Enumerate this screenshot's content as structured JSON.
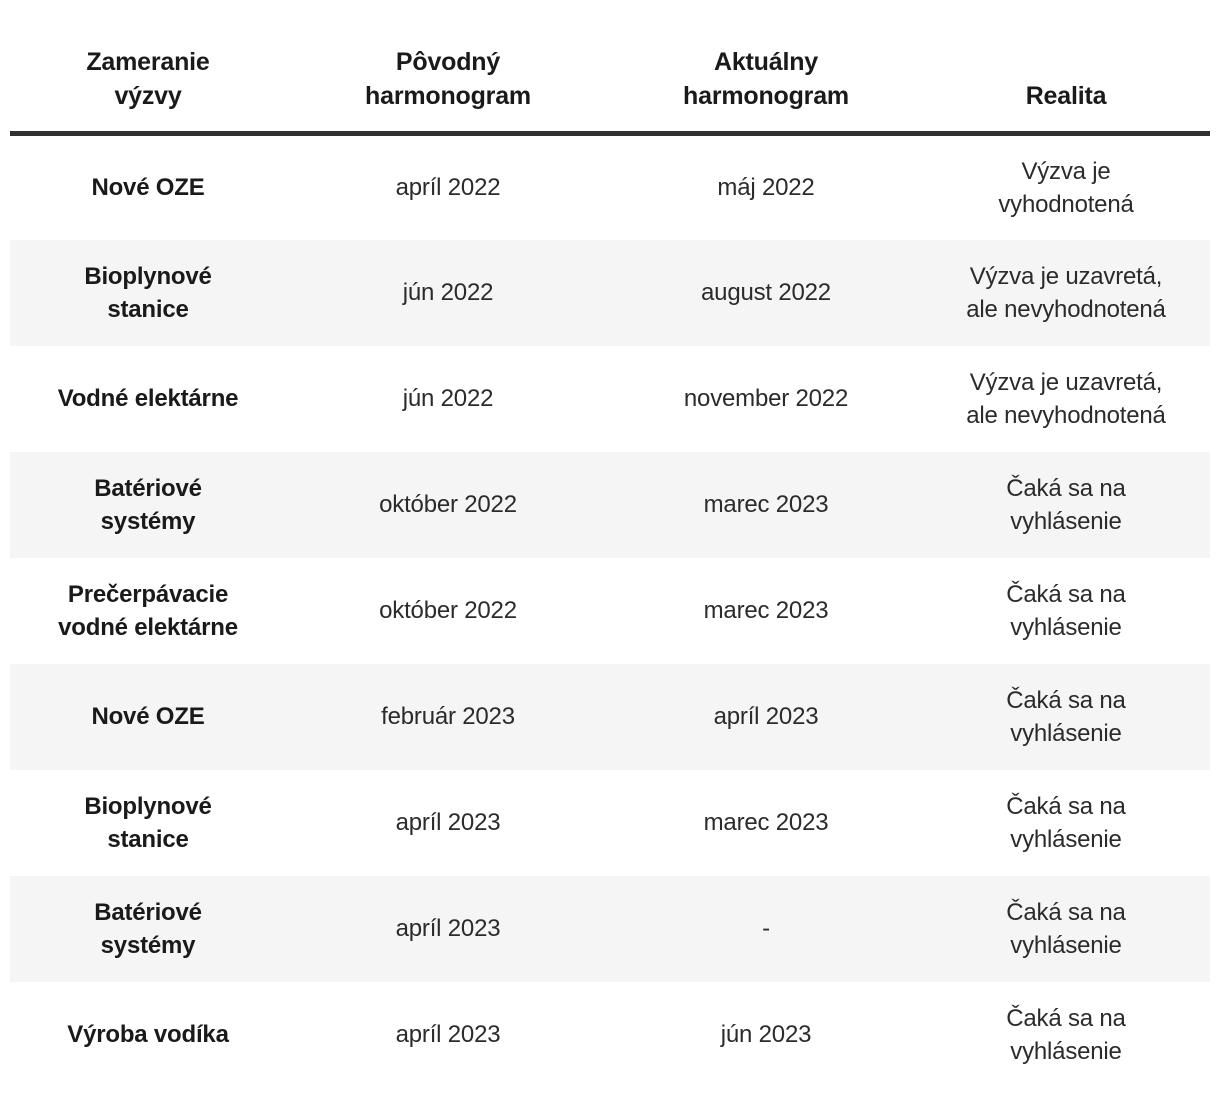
{
  "table": {
    "columns": [
      {
        "key": "zameranie-vyzvy",
        "label": "Zameranie\nvýzvy"
      },
      {
        "key": "povodny-harmonogram",
        "label": "Pôvodný\nharmonogram"
      },
      {
        "key": "aktualny-harmonogram",
        "label": "Aktuálny\nharmonogram"
      },
      {
        "key": "realita",
        "label": "Realita"
      }
    ],
    "rows": [
      [
        "Nové OZE",
        "apríl 2022",
        "máj 2022",
        "Výzva je\nvyhodnotená"
      ],
      [
        "Bioplynové\nstanice",
        "jún 2022",
        "august 2022",
        "Výzva je uzavretá,\nale nevyhodnotená"
      ],
      [
        "Vodné elektárne",
        "jún 2022",
        "november 2022",
        "Výzva je uzavretá,\nale nevyhodnotená"
      ],
      [
        "Batériové\nsystémy",
        "október 2022",
        "marec 2023",
        "Čaká sa na\nvyhlásenie"
      ],
      [
        "Prečerpávacie\nvodné elektárne",
        "október 2022",
        "marec 2023",
        "Čaká sa na\nvyhlásenie"
      ],
      [
        "Nové OZE",
        "február 2023",
        "apríl 2023",
        "Čaká sa na\nvyhlásenie"
      ],
      [
        "Bioplynové\nstanice",
        "apríl 2023",
        "marec 2023",
        "Čaká sa na\nvyhlásenie"
      ],
      [
        "Batériové\nsystémy",
        "apríl 2023",
        "-",
        "Čaká sa na\nvyhlásenie"
      ],
      [
        "Výroba vodíka",
        "apríl 2023",
        "jún 2023",
        "Čaká sa na\nvyhlásenie"
      ]
    ]
  },
  "colors": {
    "background": "#ffffff",
    "row_shade": "#f5f5f5",
    "header_rule": "#303030",
    "text": "#2b2b2b",
    "heading_text": "#1a1a1a"
  },
  "chart_data": {
    "type": "table",
    "title": "",
    "columns": [
      "Zameranie výzvy",
      "Pôvodný harmonogram",
      "Aktuálny harmonogram",
      "Realita"
    ],
    "rows": [
      [
        "Nové OZE",
        "apríl 2022",
        "máj 2022",
        "Výzva je vyhodnotená"
      ],
      [
        "Bioplynové stanice",
        "jún 2022",
        "august 2022",
        "Výzva je uzavretá, ale nevyhodnotená"
      ],
      [
        "Vodné elektárne",
        "jún 2022",
        "november 2022",
        "Výzva je uzavretá, ale nevyhodnotená"
      ],
      [
        "Batériové systémy",
        "október 2022",
        "marec 2023",
        "Čaká sa na vyhlásenie"
      ],
      [
        "Prečerpávacie vodné elektárne",
        "október 2022",
        "marec 2023",
        "Čaká sa na vyhlásenie"
      ],
      [
        "Nové OZE",
        "február 2023",
        "apríl 2023",
        "Čaká sa na vyhlásenie"
      ],
      [
        "Bioplynové stanice",
        "apríl 2023",
        "marec 2023",
        "Čaká sa na vyhlásenie"
      ],
      [
        "Batériové systémy",
        "apríl 2023",
        "-",
        "Čaká sa na vyhlásenie"
      ],
      [
        "Výroba vodíka",
        "apríl 2023",
        "jún 2023",
        "Čaká sa na vyhlásenie"
      ]
    ],
    "layout": {
      "alternating_row_shading": true,
      "shaded_row_indexes": [
        1,
        3,
        5,
        7
      ],
      "header_divider": "thick dark rule",
      "cell_alignment": "center"
    }
  }
}
